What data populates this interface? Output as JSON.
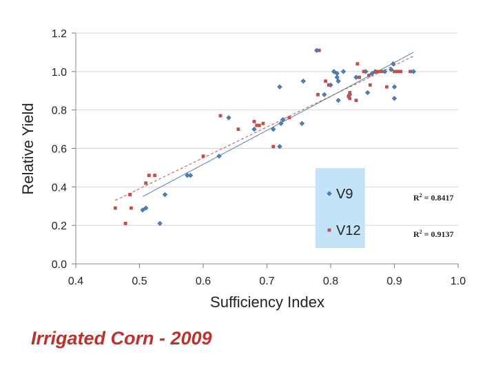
{
  "caption": "Irrigated Corn - 2009",
  "r2": {
    "v9_prefix": "R",
    "v9_sup": "2",
    "v9_rest": " = 0.8417",
    "v12_prefix": "R",
    "v12_sup": "2",
    "v12_rest": " = 0.9137"
  },
  "colors": {
    "v9": "#4f81bd",
    "v12": "#c0504d",
    "legend_bg": "#c5e3f6",
    "grid": "#d4d4d4"
  },
  "chart_data": {
    "type": "scatter",
    "title": "",
    "xlabel": "Sufficiency Index",
    "ylabel": "Relative Yield",
    "xlim": [
      0.4,
      1.0
    ],
    "ylim": [
      0.0,
      1.2
    ],
    "x_ticks": [
      "0.4",
      "0.5",
      "0.6",
      "0.7",
      "0.8",
      "0.9",
      "1.0"
    ],
    "y_ticks": [
      "0.0",
      "0.2",
      "0.4",
      "0.6",
      "0.8",
      "1.0",
      "1.2"
    ],
    "grid": "horizontal",
    "legend": "right",
    "series": [
      {
        "name": "V9",
        "marker": "diamond",
        "trendline": {
          "style": "solid",
          "x": [
            0.505,
            0.93
          ],
          "y": [
            0.35,
            1.1
          ]
        },
        "points": [
          [
            0.505,
            0.28
          ],
          [
            0.51,
            0.29
          ],
          [
            0.532,
            0.21
          ],
          [
            0.54,
            0.36
          ],
          [
            0.575,
            0.46
          ],
          [
            0.58,
            0.46
          ],
          [
            0.625,
            0.56
          ],
          [
            0.64,
            0.76
          ],
          [
            0.68,
            0.7
          ],
          [
            0.71,
            0.7
          ],
          [
            0.72,
            0.61
          ],
          [
            0.72,
            0.92
          ],
          [
            0.722,
            0.73
          ],
          [
            0.725,
            0.75
          ],
          [
            0.755,
            0.73
          ],
          [
            0.757,
            0.95
          ],
          [
            0.778,
            1.11
          ],
          [
            0.79,
            0.88
          ],
          [
            0.8,
            0.93
          ],
          [
            0.805,
            1.0
          ],
          [
            0.81,
            0.99
          ],
          [
            0.81,
            0.97
          ],
          [
            0.812,
            0.95
          ],
          [
            0.812,
            0.85
          ],
          [
            0.82,
            1.0
          ],
          [
            0.83,
            0.88
          ],
          [
            0.84,
            0.97
          ],
          [
            0.855,
            1.0
          ],
          [
            0.858,
            0.89
          ],
          [
            0.865,
            0.99
          ],
          [
            0.87,
            1.0
          ],
          [
            0.885,
            1.0
          ],
          [
            0.895,
            1.01
          ],
          [
            0.898,
            1.04
          ],
          [
            0.9,
            0.92
          ],
          [
            0.9,
            0.86
          ],
          [
            0.93,
            1.0
          ]
        ]
      },
      {
        "name": "V12",
        "marker": "square",
        "trendline": {
          "style": "dashed",
          "x": [
            0.462,
            0.93
          ],
          "y": [
            0.33,
            1.08
          ]
        },
        "points": [
          [
            0.462,
            0.29
          ],
          [
            0.478,
            0.21
          ],
          [
            0.485,
            0.36
          ],
          [
            0.487,
            0.29
          ],
          [
            0.51,
            0.42
          ],
          [
            0.515,
            0.46
          ],
          [
            0.524,
            0.46
          ],
          [
            0.6,
            0.56
          ],
          [
            0.627,
            0.77
          ],
          [
            0.655,
            0.7
          ],
          [
            0.68,
            0.74
          ],
          [
            0.684,
            0.72
          ],
          [
            0.688,
            0.72
          ],
          [
            0.694,
            0.73
          ],
          [
            0.71,
            0.61
          ],
          [
            0.735,
            0.76
          ],
          [
            0.78,
            0.88
          ],
          [
            0.782,
            1.11
          ],
          [
            0.792,
            0.95
          ],
          [
            0.797,
            0.93
          ],
          [
            0.828,
            0.87
          ],
          [
            0.83,
            0.89
          ],
          [
            0.83,
            0.86
          ],
          [
            0.84,
            0.85
          ],
          [
            0.842,
            1.04
          ],
          [
            0.845,
            0.97
          ],
          [
            0.852,
            1.0
          ],
          [
            0.86,
            0.98
          ],
          [
            0.862,
            0.93
          ],
          [
            0.87,
            1.0
          ],
          [
            0.875,
            1.0
          ],
          [
            0.88,
            1.0
          ],
          [
            0.888,
            0.92
          ],
          [
            0.9,
            1.0
          ],
          [
            0.905,
            1.0
          ],
          [
            0.91,
            1.0
          ],
          [
            0.925,
            1.0
          ]
        ]
      }
    ]
  }
}
